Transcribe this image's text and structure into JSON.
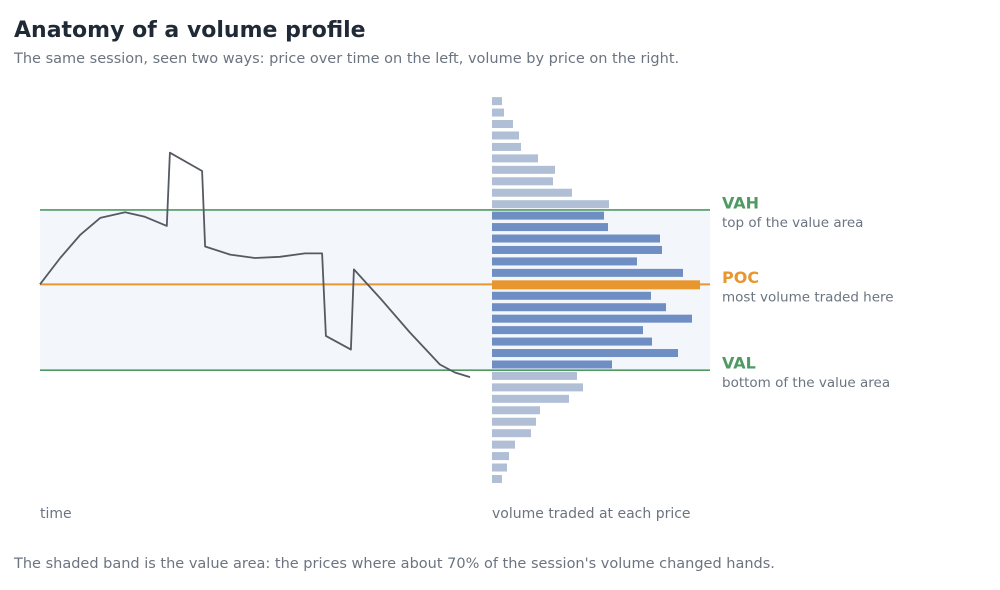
{
  "chart_data": {
    "type": "volume-profile",
    "title": "Anatomy of a volume profile",
    "subtitle": "The same session, seen two ways: price over time on the left, volume by price on the right.",
    "x_label": "time",
    "volume_label": "volume traded at each price",
    "footnote": "The shaded band is the value area: the prices where about 70% of the session's volume changed hands.",
    "ylim": [
      100.5,
      134.5
    ],
    "xlim": [
      0,
      100
    ],
    "volume_lim": [
      0,
      208
    ],
    "prices": [
      101,
      102,
      103,
      104,
      105,
      106,
      107,
      108,
      109,
      110,
      111,
      112,
      113,
      114,
      115,
      116,
      117,
      118,
      119,
      120,
      121,
      122,
      123,
      124,
      125,
      126,
      127,
      128,
      129,
      130,
      131,
      132,
      133,
      134
    ],
    "volumes": [
      10,
      15,
      17,
      23,
      39,
      44,
      48,
      77,
      91,
      85,
      120,
      186,
      160,
      151,
      200,
      174,
      159,
      208,
      191,
      145,
      170,
      168,
      116,
      112,
      117,
      80,
      61,
      63,
      46,
      29,
      27,
      21,
      12,
      10
    ],
    "volume_color": "#b0bfd6",
    "value_area_color": "#6f8fc4",
    "band_color": "#f3f6fb",
    "price_line": {
      "color": "#555a62",
      "time": [
        0,
        4.7,
        9.3,
        14,
        19.8,
        24.4,
        29.5,
        30.2,
        37.7,
        38.4,
        44.2,
        50,
        55.8,
        61.6,
        65.6,
        66.5,
        72.3,
        73,
        79.1,
        86,
        93,
        96.5,
        100
      ],
      "price": [
        118,
        120.3,
        122.3,
        123.8,
        124.3,
        123.9,
        123.1,
        129.5,
        127.9,
        121.3,
        120.6,
        120.3,
        120.4,
        120.7,
        120.7,
        113.5,
        112.3,
        119.3,
        116.8,
        113.8,
        111,
        110.3,
        109.9
      ]
    },
    "levels": [
      {
        "name": "VAH",
        "note": "top of the value area",
        "value": 124.5,
        "color": "#4e9a62"
      },
      {
        "name": "POC",
        "note": "most volume traded here",
        "value": 118,
        "color": "#e8962e"
      },
      {
        "name": "VAL",
        "note": "bottom of the value area",
        "value": 110.5,
        "color": "#4e9a62"
      }
    ]
  }
}
